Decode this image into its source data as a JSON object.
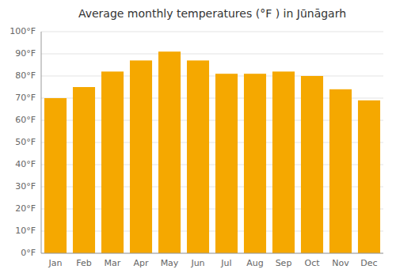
{
  "chart_data": {
    "type": "bar",
    "title": "Average monthly temperatures (°F ) in Jūnāgarh",
    "categories": [
      "Jan",
      "Feb",
      "Mar",
      "Apr",
      "May",
      "Jun",
      "Jul",
      "Aug",
      "Sep",
      "Oct",
      "Nov",
      "Dec"
    ],
    "values": [
      70,
      75,
      82,
      87,
      91,
      87,
      81,
      81,
      82,
      80,
      74,
      69
    ],
    "color": "#F5A800",
    "ylim": [
      0,
      100
    ],
    "yticks": [
      {
        "value": 0,
        "label": "0°F"
      },
      {
        "value": 10,
        "label": "10°F"
      },
      {
        "value": 20,
        "label": "20°F"
      },
      {
        "value": 30,
        "label": "30°F"
      },
      {
        "value": 40,
        "label": "40°F"
      },
      {
        "value": 50,
        "label": "50°F"
      },
      {
        "value": 60,
        "label": "60°F"
      },
      {
        "value": 70,
        "label": "70°F"
      },
      {
        "value": 80,
        "label": "80°F"
      },
      {
        "value": 90,
        "label": "90°F"
      },
      {
        "value": 100,
        "label": "100°F"
      }
    ],
    "grid": true
  }
}
